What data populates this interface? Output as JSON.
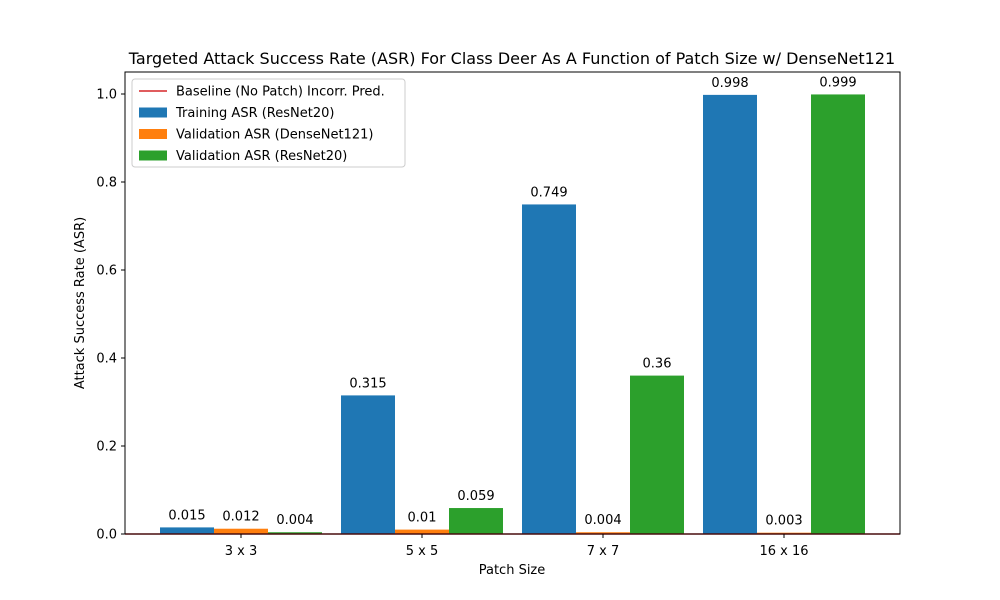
{
  "chart_data": {
    "type": "bar",
    "title": "Targeted Attack Success Rate (ASR) For Class Deer As A Function of Patch Size w/ DenseNet121",
    "xlabel": "Patch Size",
    "ylabel": "Attack Success Rate (ASR)",
    "categories": [
      "3 x 3",
      "5 x 5",
      "7 x 7",
      "16 x 16"
    ],
    "ylim": [
      0,
      1.05
    ],
    "yticks": [
      0.0,
      0.2,
      0.4,
      0.6,
      0.8,
      1.0
    ],
    "ytick_labels": [
      "0.0",
      "0.2",
      "0.4",
      "0.6",
      "0.8",
      "1.0"
    ],
    "legend_position": "top-left",
    "grid": false,
    "baseline": {
      "name": "Baseline (No Patch) Incorr. Pred.",
      "value": 0.0,
      "color": "#d62728"
    },
    "series": [
      {
        "name": "Training ASR (ResNet20)",
        "color": "#1f77b4",
        "values": [
          0.015,
          0.315,
          0.749,
          0.998
        ],
        "labels": [
          "0.015",
          "0.315",
          "0.749",
          "0.998"
        ]
      },
      {
        "name": "Validation ASR (DenseNet121)",
        "color": "#ff7f0e",
        "values": [
          0.012,
          0.01,
          0.004,
          0.003
        ],
        "labels": [
          "0.012",
          "0.01",
          "0.004",
          "0.003"
        ]
      },
      {
        "name": "Validation ASR (ResNet20)",
        "color": "#2ca02c",
        "values": [
          0.004,
          0.059,
          0.36,
          0.999
        ],
        "labels": [
          "0.004",
          "0.059",
          "0.36",
          "0.999"
        ]
      }
    ]
  }
}
